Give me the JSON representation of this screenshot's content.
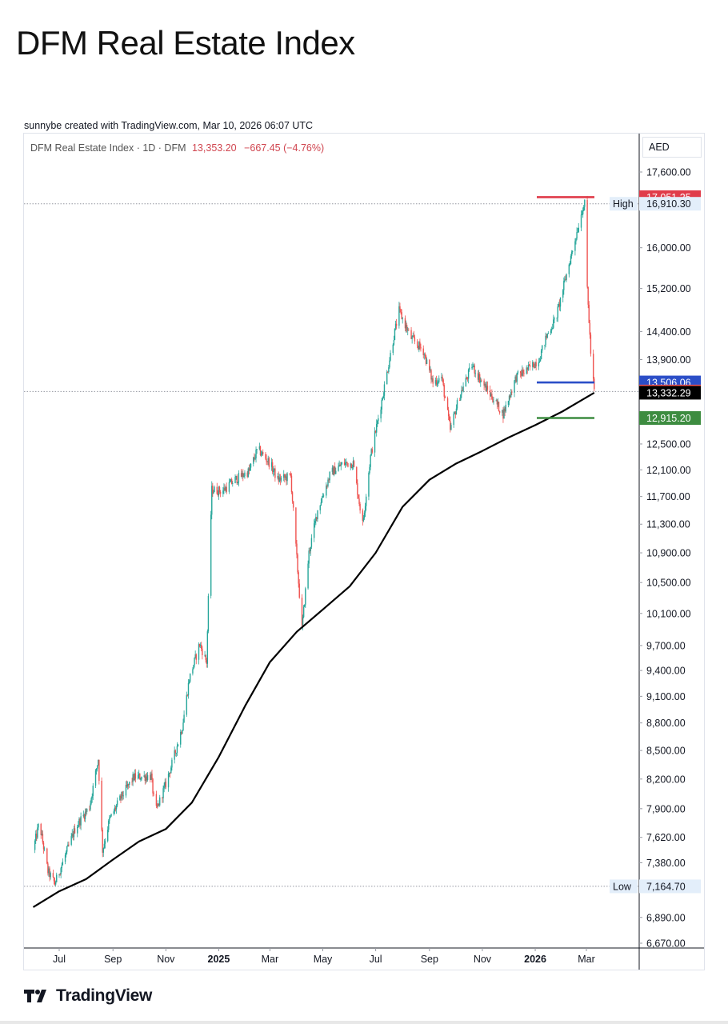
{
  "page": {
    "title": "DFM Real Estate Index"
  },
  "credit": "sunnybe created with TradingView.com, Mar 10, 2026 06:07 UTC",
  "legend": {
    "symbol": "DFM Real Estate Index · 1D · DFM",
    "price": "13,353.20",
    "change": "−667.45 (−4.76%)"
  },
  "currency": "AED",
  "brand": {
    "name": "TradingView",
    "icon": "tradingview-logo-icon"
  },
  "colors": {
    "up": "#26a69a",
    "down": "#ef5350",
    "ma": "#000000",
    "red_level": "#e03c4a",
    "blue_level": "#2b4ec7",
    "green_level": "#3d8c40"
  },
  "chart_data": {
    "type": "candlestick",
    "title": "DFM Real Estate Index",
    "interval": "1D",
    "currency": "AED",
    "scale": "log",
    "grid": false,
    "x_ticks": [
      {
        "label": "Jul",
        "date": "2024-07-01"
      },
      {
        "label": "Sep",
        "date": "2024-09-01"
      },
      {
        "label": "Nov",
        "date": "2024-11-01"
      },
      {
        "label": "2025",
        "date": "2025-01-01",
        "bold": true
      },
      {
        "label": "Mar",
        "date": "2025-03-01"
      },
      {
        "label": "May",
        "date": "2025-05-01"
      },
      {
        "label": "Jul",
        "date": "2025-07-01"
      },
      {
        "label": "Sep",
        "date": "2025-09-01"
      },
      {
        "label": "Nov",
        "date": "2025-11-01"
      },
      {
        "label": "2026",
        "date": "2026-01-01",
        "bold": true
      },
      {
        "label": "Mar",
        "date": "2026-03-01"
      }
    ],
    "y_ticks": [
      {
        "label": "17,600.00",
        "value": 17600
      },
      {
        "label": "16,000.00",
        "value": 16000
      },
      {
        "label": "15,200.00",
        "value": 15200
      },
      {
        "label": "14,400.00",
        "value": 14400
      },
      {
        "label": "13,900.00",
        "value": 13900
      },
      {
        "label": "12,500.00",
        "value": 12500
      },
      {
        "label": "12,100.00",
        "value": 12100
      },
      {
        "label": "11,700.00",
        "value": 11700
      },
      {
        "label": "11,300.00",
        "value": 11300
      },
      {
        "label": "10,900.00",
        "value": 10900
      },
      {
        "label": "10,500.00",
        "value": 10500
      },
      {
        "label": "10,100.00",
        "value": 10100
      },
      {
        "label": "9,700.00",
        "value": 9700
      },
      {
        "label": "9,400.00",
        "value": 9400
      },
      {
        "label": "9,100.00",
        "value": 9100
      },
      {
        "label": "8,800.00",
        "value": 8800
      },
      {
        "label": "8,500.00",
        "value": 8500
      },
      {
        "label": "8,200.00",
        "value": 8200
      },
      {
        "label": "7,900.00",
        "value": 7900
      },
      {
        "label": "7,620.00",
        "value": 7620
      },
      {
        "label": "7,380.00",
        "value": 7380
      },
      {
        "label": "6,890.00",
        "value": 6890
      },
      {
        "label": "6,670.00",
        "value": 6670
      }
    ],
    "high": {
      "label": "High",
      "value": 16910.3,
      "text": "16,910.30"
    },
    "low": {
      "label": "Low",
      "value": 7164.7,
      "text": "7,164.70"
    },
    "levels": [
      {
        "name": "red-level",
        "value": 17051.25,
        "text": "17,051.25",
        "color": "#e03c4a"
      },
      {
        "name": "blue-level",
        "value": 13506.06,
        "text": "13,506.06",
        "color": "#2b4ec7"
      },
      {
        "name": "last-price",
        "value": 13353.2,
        "text": "13,353.20",
        "color": "#ef5350"
      },
      {
        "name": "moving-average",
        "value": 13332.29,
        "text": "13,332.29",
        "color": "#000000"
      },
      {
        "name": "green-level",
        "value": 12915.2,
        "text": "12,915.20",
        "color": "#3d8c40"
      }
    ],
    "price_path": [
      {
        "date": "2024-06-01",
        "value": 7500
      },
      {
        "date": "2024-06-08",
        "value": 7760
      },
      {
        "date": "2024-06-18",
        "value": 7300
      },
      {
        "date": "2024-06-26",
        "value": 7190
      },
      {
        "date": "2024-07-05",
        "value": 7380
      },
      {
        "date": "2024-07-20",
        "value": 7720
      },
      {
        "date": "2024-08-05",
        "value": 7920
      },
      {
        "date": "2024-08-15",
        "value": 8410
      },
      {
        "date": "2024-08-20",
        "value": 7500
      },
      {
        "date": "2024-08-28",
        "value": 7790
      },
      {
        "date": "2024-09-10",
        "value": 8010
      },
      {
        "date": "2024-09-25",
        "value": 8220
      },
      {
        "date": "2024-10-15",
        "value": 8230
      },
      {
        "date": "2024-10-20",
        "value": 7860
      },
      {
        "date": "2024-11-01",
        "value": 8150
      },
      {
        "date": "2024-11-10",
        "value": 8420
      },
      {
        "date": "2024-11-20",
        "value": 8760
      },
      {
        "date": "2024-11-28",
        "value": 9300
      },
      {
        "date": "2024-12-10",
        "value": 9720
      },
      {
        "date": "2024-12-18",
        "value": 9500
      },
      {
        "date": "2024-12-22",
        "value": 11100
      },
      {
        "date": "2024-12-24",
        "value": 11800
      },
      {
        "date": "2025-01-05",
        "value": 11780
      },
      {
        "date": "2025-01-20",
        "value": 11950
      },
      {
        "date": "2025-02-05",
        "value": 12080
      },
      {
        "date": "2025-02-15",
        "value": 12420
      },
      {
        "date": "2025-03-01",
        "value": 12200
      },
      {
        "date": "2025-03-10",
        "value": 11950
      },
      {
        "date": "2025-03-25",
        "value": 12000
      },
      {
        "date": "2025-04-07",
        "value": 9900
      },
      {
        "date": "2025-04-15",
        "value": 10900
      },
      {
        "date": "2025-04-25",
        "value": 11500
      },
      {
        "date": "2025-05-10",
        "value": 12050
      },
      {
        "date": "2025-05-25",
        "value": 12200
      },
      {
        "date": "2025-06-05",
        "value": 12200
      },
      {
        "date": "2025-06-16",
        "value": 11300
      },
      {
        "date": "2025-06-25",
        "value": 12300
      },
      {
        "date": "2025-07-08",
        "value": 13200
      },
      {
        "date": "2025-07-22",
        "value": 14320
      },
      {
        "date": "2025-07-28",
        "value": 14780
      },
      {
        "date": "2025-08-10",
        "value": 14300
      },
      {
        "date": "2025-08-25",
        "value": 14050
      },
      {
        "date": "2025-09-05",
        "value": 13500
      },
      {
        "date": "2025-09-15",
        "value": 13600
      },
      {
        "date": "2025-09-25",
        "value": 12720
      },
      {
        "date": "2025-10-05",
        "value": 13250
      },
      {
        "date": "2025-10-20",
        "value": 13800
      },
      {
        "date": "2025-11-01",
        "value": 13500
      },
      {
        "date": "2025-11-15",
        "value": 13200
      },
      {
        "date": "2025-11-25",
        "value": 12980
      },
      {
        "date": "2025-12-10",
        "value": 13600
      },
      {
        "date": "2025-12-25",
        "value": 13750
      },
      {
        "date": "2026-01-05",
        "value": 13900
      },
      {
        "date": "2026-01-15",
        "value": 14350
      },
      {
        "date": "2026-01-25",
        "value": 14650
      },
      {
        "date": "2026-02-05",
        "value": 15400
      },
      {
        "date": "2026-02-15",
        "value": 16100
      },
      {
        "date": "2026-02-25",
        "value": 16850
      },
      {
        "date": "2026-02-28",
        "value": 16910
      },
      {
        "date": "2026-03-02",
        "value": 15200
      },
      {
        "date": "2026-03-04",
        "value": 14600
      },
      {
        "date": "2026-03-06",
        "value": 14020
      },
      {
        "date": "2026-03-10",
        "value": 13353
      }
    ],
    "ma_path": [
      {
        "date": "2024-06-01",
        "value": 6980
      },
      {
        "date": "2024-07-01",
        "value": 7120
      },
      {
        "date": "2024-08-01",
        "value": 7230
      },
      {
        "date": "2024-09-01",
        "value": 7410
      },
      {
        "date": "2024-10-01",
        "value": 7580
      },
      {
        "date": "2024-11-01",
        "value": 7700
      },
      {
        "date": "2024-12-01",
        "value": 7960
      },
      {
        "date": "2025-01-01",
        "value": 8430
      },
      {
        "date": "2025-02-01",
        "value": 9000
      },
      {
        "date": "2025-03-01",
        "value": 9500
      },
      {
        "date": "2025-04-01",
        "value": 9870
      },
      {
        "date": "2025-05-01",
        "value": 10150
      },
      {
        "date": "2025-06-01",
        "value": 10450
      },
      {
        "date": "2025-07-01",
        "value": 10900
      },
      {
        "date": "2025-08-01",
        "value": 11550
      },
      {
        "date": "2025-09-01",
        "value": 11950
      },
      {
        "date": "2025-10-01",
        "value": 12190
      },
      {
        "date": "2025-11-01",
        "value": 12390
      },
      {
        "date": "2025-12-01",
        "value": 12600
      },
      {
        "date": "2026-01-01",
        "value": 12800
      },
      {
        "date": "2026-02-01",
        "value": 13020
      },
      {
        "date": "2026-03-10",
        "value": 13332
      }
    ]
  }
}
